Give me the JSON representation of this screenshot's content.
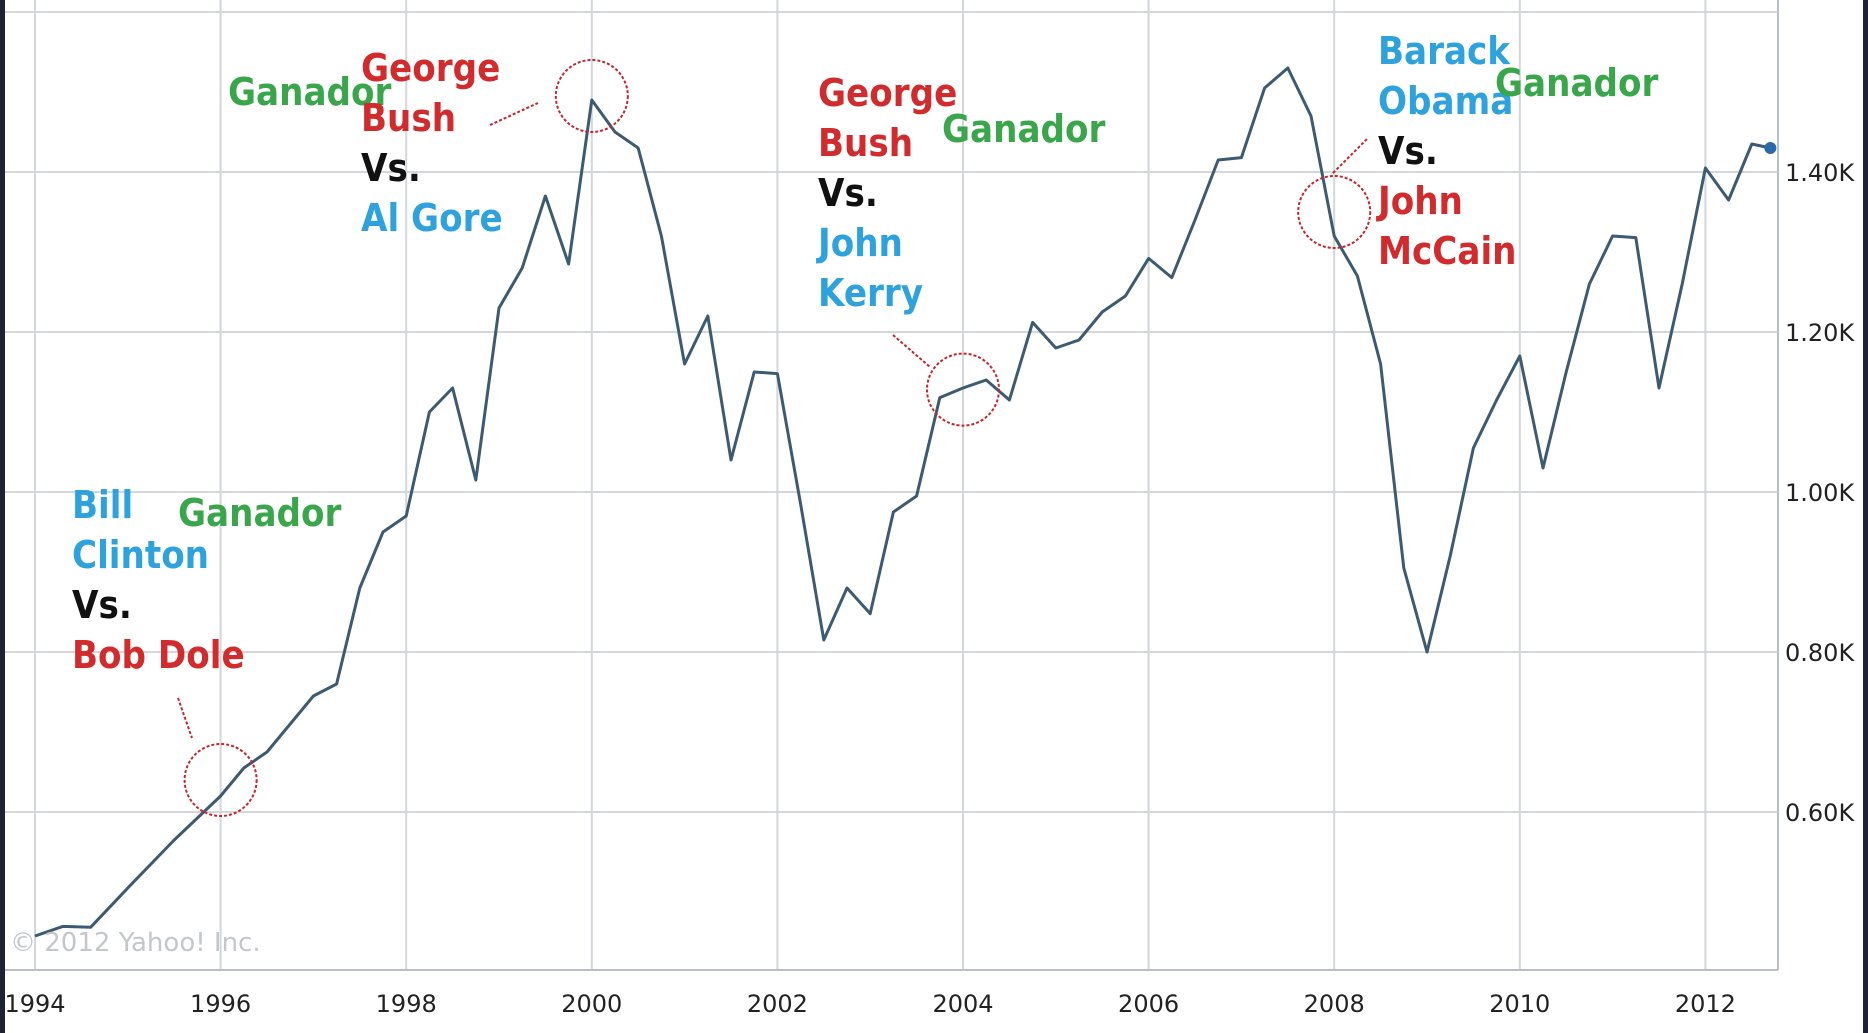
{
  "chart_data": {
    "type": "line",
    "title": "",
    "xlabel": "",
    "ylabel": "",
    "ylim": [
      0.4,
      1.6
    ],
    "xlim": [
      1994,
      2012.75
    ],
    "grid": true,
    "y_axis_side": "right",
    "x_ticks": [
      "1994",
      "1996",
      "1998",
      "2000",
      "2002",
      "2004",
      "2006",
      "2008",
      "2010",
      "2012"
    ],
    "y_ticks": [
      {
        "value": 0.6,
        "label": "0.60K"
      },
      {
        "value": 0.8,
        "label": "0.80K"
      },
      {
        "value": 1.0,
        "label": "1.00K"
      },
      {
        "value": 1.2,
        "label": "1.20K"
      },
      {
        "value": 1.4,
        "label": "1.40K"
      }
    ],
    "series": [
      {
        "color": "#3d5a73",
        "points": [
          [
            1994.0,
            0.445
          ],
          [
            1994.3,
            0.457
          ],
          [
            1994.6,
            0.456
          ],
          [
            1995.0,
            0.505
          ],
          [
            1995.5,
            0.565
          ],
          [
            1996.0,
            0.62
          ],
          [
            1996.25,
            0.655
          ],
          [
            1996.5,
            0.675
          ],
          [
            1996.75,
            0.71
          ],
          [
            1997.0,
            0.745
          ],
          [
            1997.25,
            0.76
          ],
          [
            1997.5,
            0.88
          ],
          [
            1997.75,
            0.95
          ],
          [
            1998.0,
            0.97
          ],
          [
            1998.25,
            1.1
          ],
          [
            1998.5,
            1.13
          ],
          [
            1998.75,
            1.015
          ],
          [
            1999.0,
            1.23
          ],
          [
            1999.25,
            1.28
          ],
          [
            1999.5,
            1.37
          ],
          [
            1999.75,
            1.285
          ],
          [
            2000.0,
            1.49
          ],
          [
            2000.25,
            1.45
          ],
          [
            2000.5,
            1.43
          ],
          [
            2000.75,
            1.32
          ],
          [
            2001.0,
            1.16
          ],
          [
            2001.25,
            1.22
          ],
          [
            2001.5,
            1.04
          ],
          [
            2001.75,
            1.15
          ],
          [
            2002.0,
            1.148
          ],
          [
            2002.25,
            0.985
          ],
          [
            2002.5,
            0.815
          ],
          [
            2002.75,
            0.88
          ],
          [
            2003.0,
            0.848
          ],
          [
            2003.25,
            0.975
          ],
          [
            2003.5,
            0.995
          ],
          [
            2003.75,
            1.118
          ],
          [
            2004.0,
            1.13
          ],
          [
            2004.25,
            1.14
          ],
          [
            2004.5,
            1.115
          ],
          [
            2004.75,
            1.212
          ],
          [
            2005.0,
            1.18
          ],
          [
            2005.25,
            1.19
          ],
          [
            2005.5,
            1.225
          ],
          [
            2005.75,
            1.245
          ],
          [
            2006.0,
            1.292
          ],
          [
            2006.25,
            1.268
          ],
          [
            2006.5,
            1.34
          ],
          [
            2006.75,
            1.415
          ],
          [
            2007.0,
            1.418
          ],
          [
            2007.25,
            1.505
          ],
          [
            2007.5,
            1.53
          ],
          [
            2007.75,
            1.47
          ],
          [
            2008.0,
            1.32
          ],
          [
            2008.25,
            1.27
          ],
          [
            2008.5,
            1.16
          ],
          [
            2008.75,
            0.905
          ],
          [
            2009.0,
            0.8
          ],
          [
            2009.25,
            0.92
          ],
          [
            2009.5,
            1.055
          ],
          [
            2009.75,
            1.115
          ],
          [
            2010.0,
            1.17
          ],
          [
            2010.25,
            1.03
          ],
          [
            2010.5,
            1.15
          ],
          [
            2010.75,
            1.26
          ],
          [
            2011.0,
            1.32
          ],
          [
            2011.25,
            1.318
          ],
          [
            2011.5,
            1.13
          ],
          [
            2011.75,
            1.26
          ],
          [
            2012.0,
            1.405
          ],
          [
            2012.25,
            1.365
          ],
          [
            2012.5,
            1.435
          ],
          [
            2012.7,
            1.43
          ]
        ]
      }
    ],
    "markers": [
      {
        "x": 1996.0,
        "y": 0.64,
        "color": "#c8242b"
      },
      {
        "x": 2000.0,
        "y": 1.495,
        "color": "#c8242b"
      },
      {
        "x": 2004.0,
        "y": 1.128,
        "color": "#c8242b"
      },
      {
        "x": 2008.0,
        "y": 1.35,
        "color": "#c8242b"
      }
    ],
    "annotations": [
      {
        "lines": [
          {
            "text": "Bill",
            "color": "blue"
          },
          {
            "text": "Clinton",
            "color": "blue"
          },
          {
            "text": "Vs.",
            "color": "black"
          },
          {
            "text": "Bob Dole",
            "color": "red"
          }
        ]
      },
      {
        "lines": [
          {
            "text": "Ganador",
            "color": "green"
          }
        ]
      },
      {
        "lines": [
          {
            "text": "Ganador",
            "color": "green"
          }
        ]
      },
      {
        "lines": [
          {
            "text": "George",
            "color": "red"
          },
          {
            "text": "Bush",
            "color": "red"
          },
          {
            "text": "Vs.",
            "color": "black"
          },
          {
            "text": "Al Gore",
            "color": "blue"
          }
        ]
      },
      {
        "lines": [
          {
            "text": "George",
            "color": "red"
          },
          {
            "text": "Bush",
            "color": "red"
          },
          {
            "text": "Vs.",
            "color": "black"
          },
          {
            "text": "John",
            "color": "blue"
          },
          {
            "text": "Kerry",
            "color": "blue"
          }
        ]
      },
      {
        "lines": [
          {
            "text": "Ganador",
            "color": "green"
          }
        ]
      },
      {
        "lines": [
          {
            "text": "Barack",
            "color": "blue"
          },
          {
            "text": "Obama",
            "color": "blue"
          },
          {
            "text": "Vs.",
            "color": "black"
          },
          {
            "text": "John",
            "color": "red"
          },
          {
            "text": "McCain",
            "color": "red"
          }
        ]
      },
      {
        "lines": [
          {
            "text": "Ganador",
            "color": "green"
          }
        ]
      }
    ],
    "watermark": "© 2012 Yahoo! Inc."
  }
}
